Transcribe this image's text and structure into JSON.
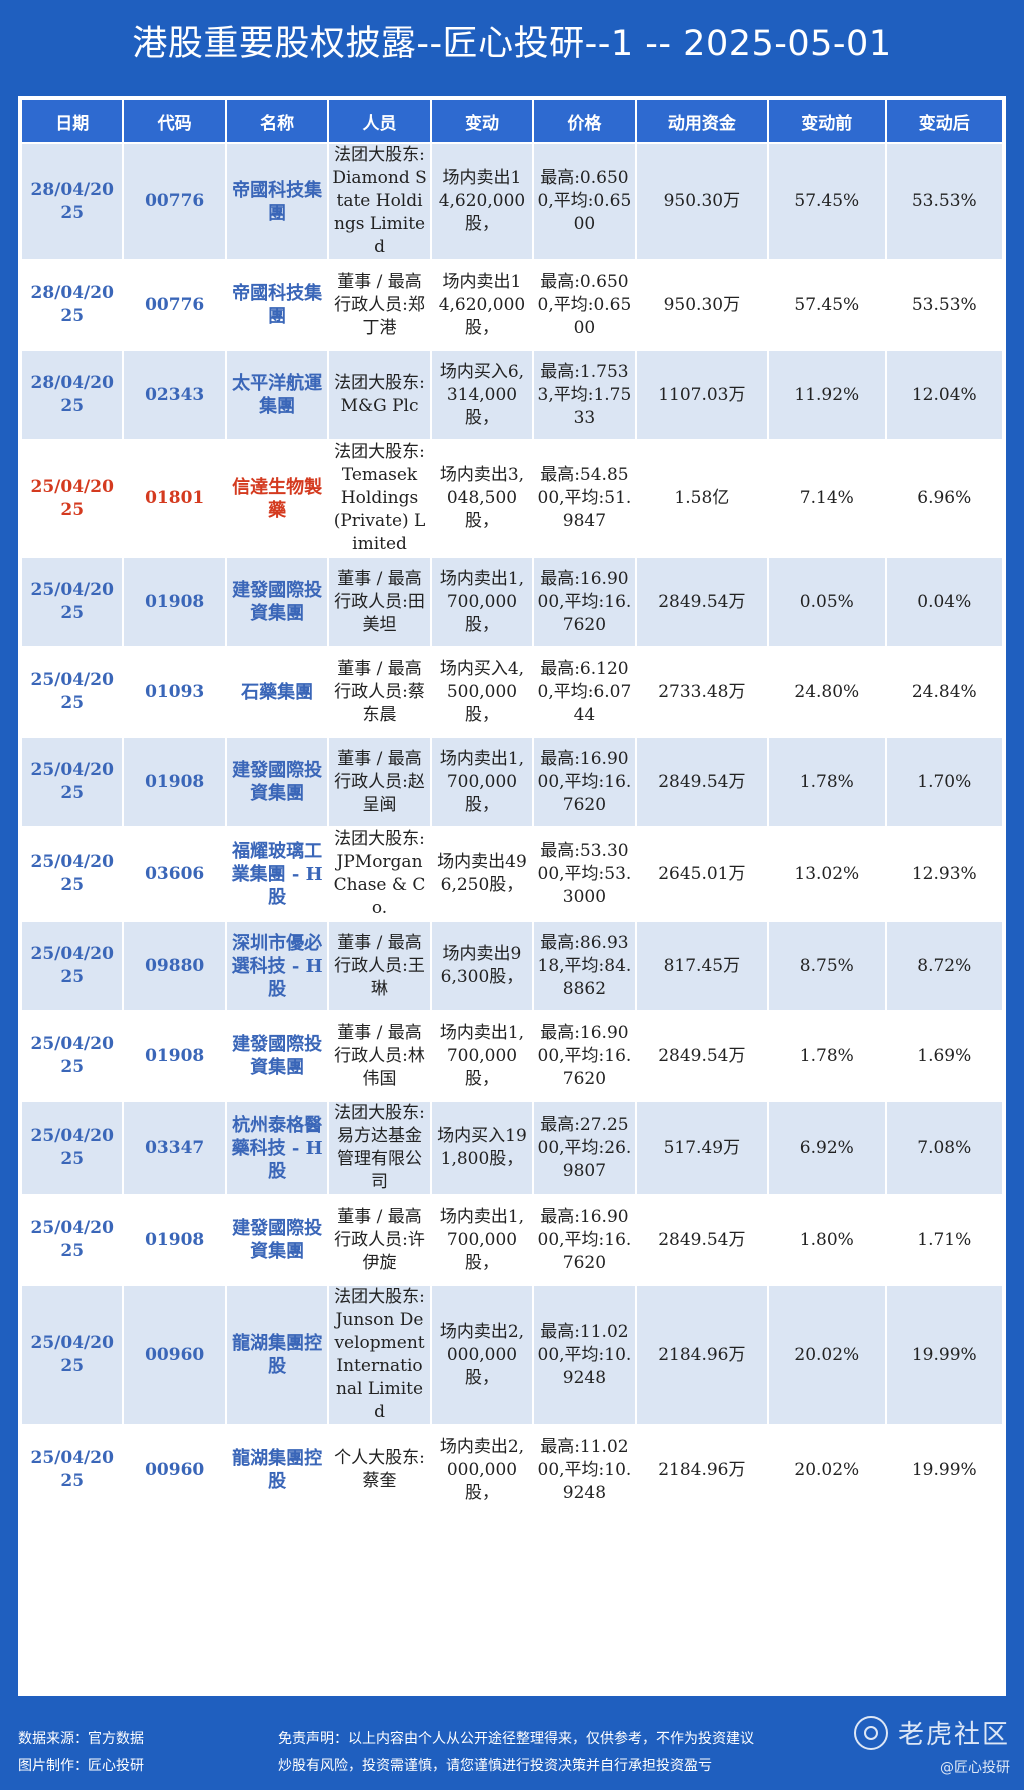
{
  "title": "港股重要股权披露--匠心投研--1 -- 2025-05-01",
  "columns": [
    "日期",
    "代码",
    "名称",
    "人员",
    "变动",
    "价格",
    "动用资金",
    "变动前",
    "变动后"
  ],
  "rows": [
    {
      "date": "28/04/2025",
      "code": "00776",
      "name": "帝國科技集團",
      "person": "法团大股东:Diamond State Holdings Limited",
      "change": "场内卖出14,620,000股，",
      "price": "最高:0.6500,平均:0.6500",
      "amount": "950.30万",
      "before": "57.45%",
      "after": "53.53%"
    },
    {
      "date": "28/04/2025",
      "code": "00776",
      "name": "帝國科技集團",
      "person": "董事 / 最高行政人员:郑丁港",
      "change": "场内卖出14,620,000股，",
      "price": "最高:0.6500,平均:0.6500",
      "amount": "950.30万",
      "before": "57.45%",
      "after": "53.53%"
    },
    {
      "date": "28/04/2025",
      "code": "02343",
      "name": "太平洋航運集團",
      "person": "法团大股东:M&G Plc",
      "change": "场内买入6,314,000股，",
      "price": "最高:1.7533,平均:1.7533",
      "amount": "1107.03万",
      "before": "11.92%",
      "after": "12.04%"
    },
    {
      "date": "25/04/2025",
      "code": "01801",
      "name": "信達生物製藥",
      "person": "法团大股东:Temasek Holdings (Private) Limited",
      "change": "场内卖出3,048,500股，",
      "price": "最高:54.8500,平均:51.9847",
      "amount": "1.58亿",
      "before": "7.14%",
      "after": "6.96%",
      "highlight": true
    },
    {
      "date": "25/04/2025",
      "code": "01908",
      "name": "建發國際投資集團",
      "person": "董事 / 最高行政人员:田美坦",
      "change": "场内卖出1,700,000股，",
      "price": "最高:16.9000,平均:16.7620",
      "amount": "2849.54万",
      "before": "0.05%",
      "after": "0.04%"
    },
    {
      "date": "25/04/2025",
      "code": "01093",
      "name": "石藥集團",
      "person": "董事 / 最高行政人员:蔡东晨",
      "change": "场内买入4,500,000股，",
      "price": "最高:6.1200,平均:6.0744",
      "amount": "2733.48万",
      "before": "24.80%",
      "after": "24.84%"
    },
    {
      "date": "25/04/2025",
      "code": "01908",
      "name": "建發國際投資集團",
      "person": "董事 / 最高行政人员:赵呈闽",
      "change": "场内卖出1,700,000股，",
      "price": "最高:16.9000,平均:16.7620",
      "amount": "2849.54万",
      "before": "1.78%",
      "after": "1.70%"
    },
    {
      "date": "25/04/2025",
      "code": "03606",
      "name": "福耀玻璃工業集團 - H股",
      "person": "法团大股东:JPMorgan Chase & Co.",
      "change": "场内卖出496,250股，",
      "price": "最高:53.3000,平均:53.3000",
      "amount": "2645.01万",
      "before": "13.02%",
      "after": "12.93%"
    },
    {
      "date": "25/04/2025",
      "code": "09880",
      "name": "深圳市優必選科技 - H股",
      "person": "董事 / 最高行政人员:王琳",
      "change": "场内卖出96,300股，",
      "price": "最高:86.9318,平均:84.8862",
      "amount": "817.45万",
      "before": "8.75%",
      "after": "8.72%"
    },
    {
      "date": "25/04/2025",
      "code": "01908",
      "name": "建發國際投資集團",
      "person": "董事 / 最高行政人员:林伟国",
      "change": "场内卖出1,700,000股，",
      "price": "最高:16.9000,平均:16.7620",
      "amount": "2849.54万",
      "before": "1.78%",
      "after": "1.69%"
    },
    {
      "date": "25/04/2025",
      "code": "03347",
      "name": "杭州泰格醫藥科技 - H股",
      "person": "法团大股东:易方达基金管理有限公司",
      "change": "场内买入191,800股，",
      "price": "最高:27.2500,平均:26.9807",
      "amount": "517.49万",
      "before": "6.92%",
      "after": "7.08%"
    },
    {
      "date": "25/04/2025",
      "code": "01908",
      "name": "建發國際投資集團",
      "person": "董事 / 最高行政人员:许伊旋",
      "change": "场内卖出1,700,000股，",
      "price": "最高:16.9000,平均:16.7620",
      "amount": "2849.54万",
      "before": "1.80%",
      "after": "1.71%"
    },
    {
      "date": "25/04/2025",
      "code": "00960",
      "name": "龍湖集團控股",
      "person": "法团大股东:Junson Development International Limited",
      "change": "场内卖出2,000,000股，",
      "price": "最高:11.0200,平均:10.9248",
      "amount": "2184.96万",
      "before": "20.02%",
      "after": "19.99%"
    },
    {
      "date": "25/04/2025",
      "code": "00960",
      "name": "龍湖集團控股",
      "person": "个人大股东:蔡奎",
      "change": "场内卖出2,000,000股，",
      "price": "最高:11.0200,平均:10.9248",
      "amount": "2184.96万",
      "before": "20.02%",
      "after": "19.99%"
    }
  ],
  "footer": {
    "source": "数据来源：官方数据",
    "maker": "图片制作：匠心投研",
    "disclaimer": "免责声明：以上内容由个人从公开途径整理得来，仅供参考，不作为投资建议",
    "risk": "炒股有风险，投资需谨慎，请您谨慎进行投资决策并自行承担投资盈亏",
    "brand": "老虎社区",
    "brand_sub": "@匠心投研"
  },
  "colors": {
    "background": "#1f5fbf",
    "header": "#2e6ad0",
    "row_alt": "#dbe5f3",
    "link_text": "#3a66b8",
    "highlight_text": "#d43a1f"
  }
}
